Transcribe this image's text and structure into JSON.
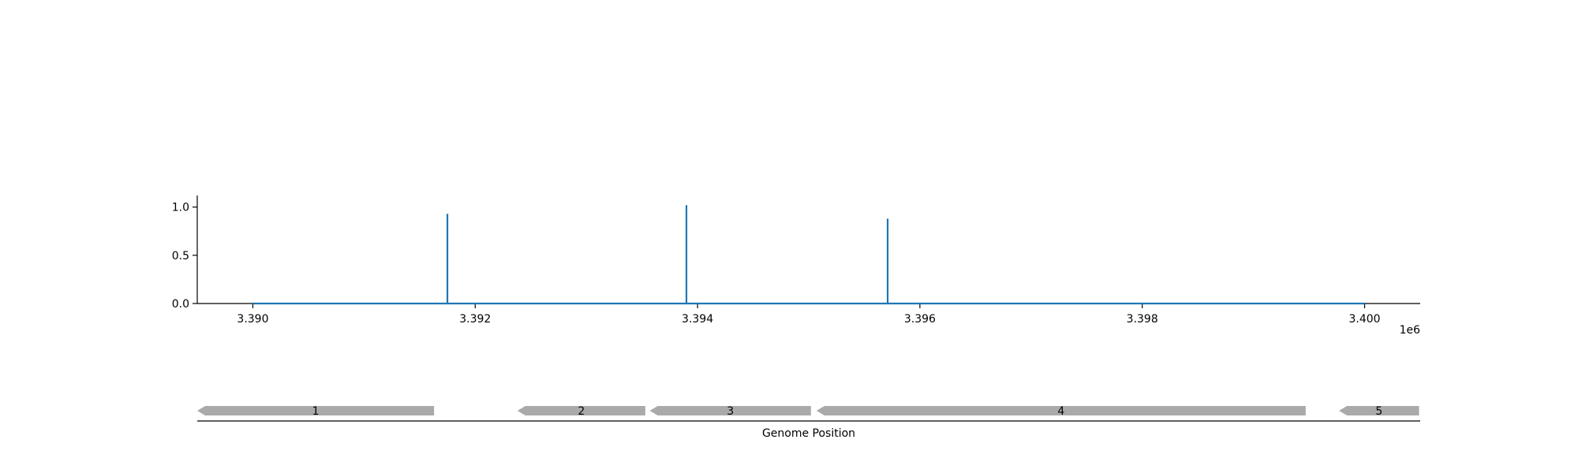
{
  "chart_data": [
    {
      "type": "line",
      "x_offset_label": "1e6",
      "xlim": [
        3389500,
        3400500
      ],
      "ylim": [
        0,
        1.12
      ],
      "x_ticks": [
        3390000,
        3392000,
        3394000,
        3396000,
        3398000,
        3400000
      ],
      "x_tick_labels": [
        "3.390",
        "3.392",
        "3.394",
        "3.396",
        "3.398",
        "3.400"
      ],
      "y_ticks": [
        0,
        0.5,
        1.0
      ],
      "y_tick_labels": [
        "0.0",
        "0.5",
        "1.0"
      ],
      "series": [
        {
          "color": "#1f77b4",
          "x": [
            3390000,
            3391750,
            3391750,
            3391750,
            3393900,
            3393900,
            3393900,
            3395710,
            3395710,
            3395710,
            3400000
          ],
          "y": [
            0,
            0,
            0.93,
            0,
            0,
            1.02,
            0,
            0,
            0.88,
            0,
            0
          ]
        }
      ],
      "grid": false
    },
    {
      "type": "gene_track",
      "xlabel": "Genome Position",
      "gene_color": "#aaaaaa",
      "genes": [
        {
          "label": "1",
          "start": 3389500,
          "end": 3391630,
          "strand": "-"
        },
        {
          "label": "2",
          "start": 3392380,
          "end": 3393530,
          "strand": "-"
        },
        {
          "label": "3",
          "start": 3393570,
          "end": 3395020,
          "strand": "-"
        },
        {
          "label": "4",
          "start": 3395070,
          "end": 3399470,
          "strand": "-"
        },
        {
          "label": "5",
          "start": 3399770,
          "end": 3400490,
          "strand": "-"
        }
      ]
    }
  ]
}
